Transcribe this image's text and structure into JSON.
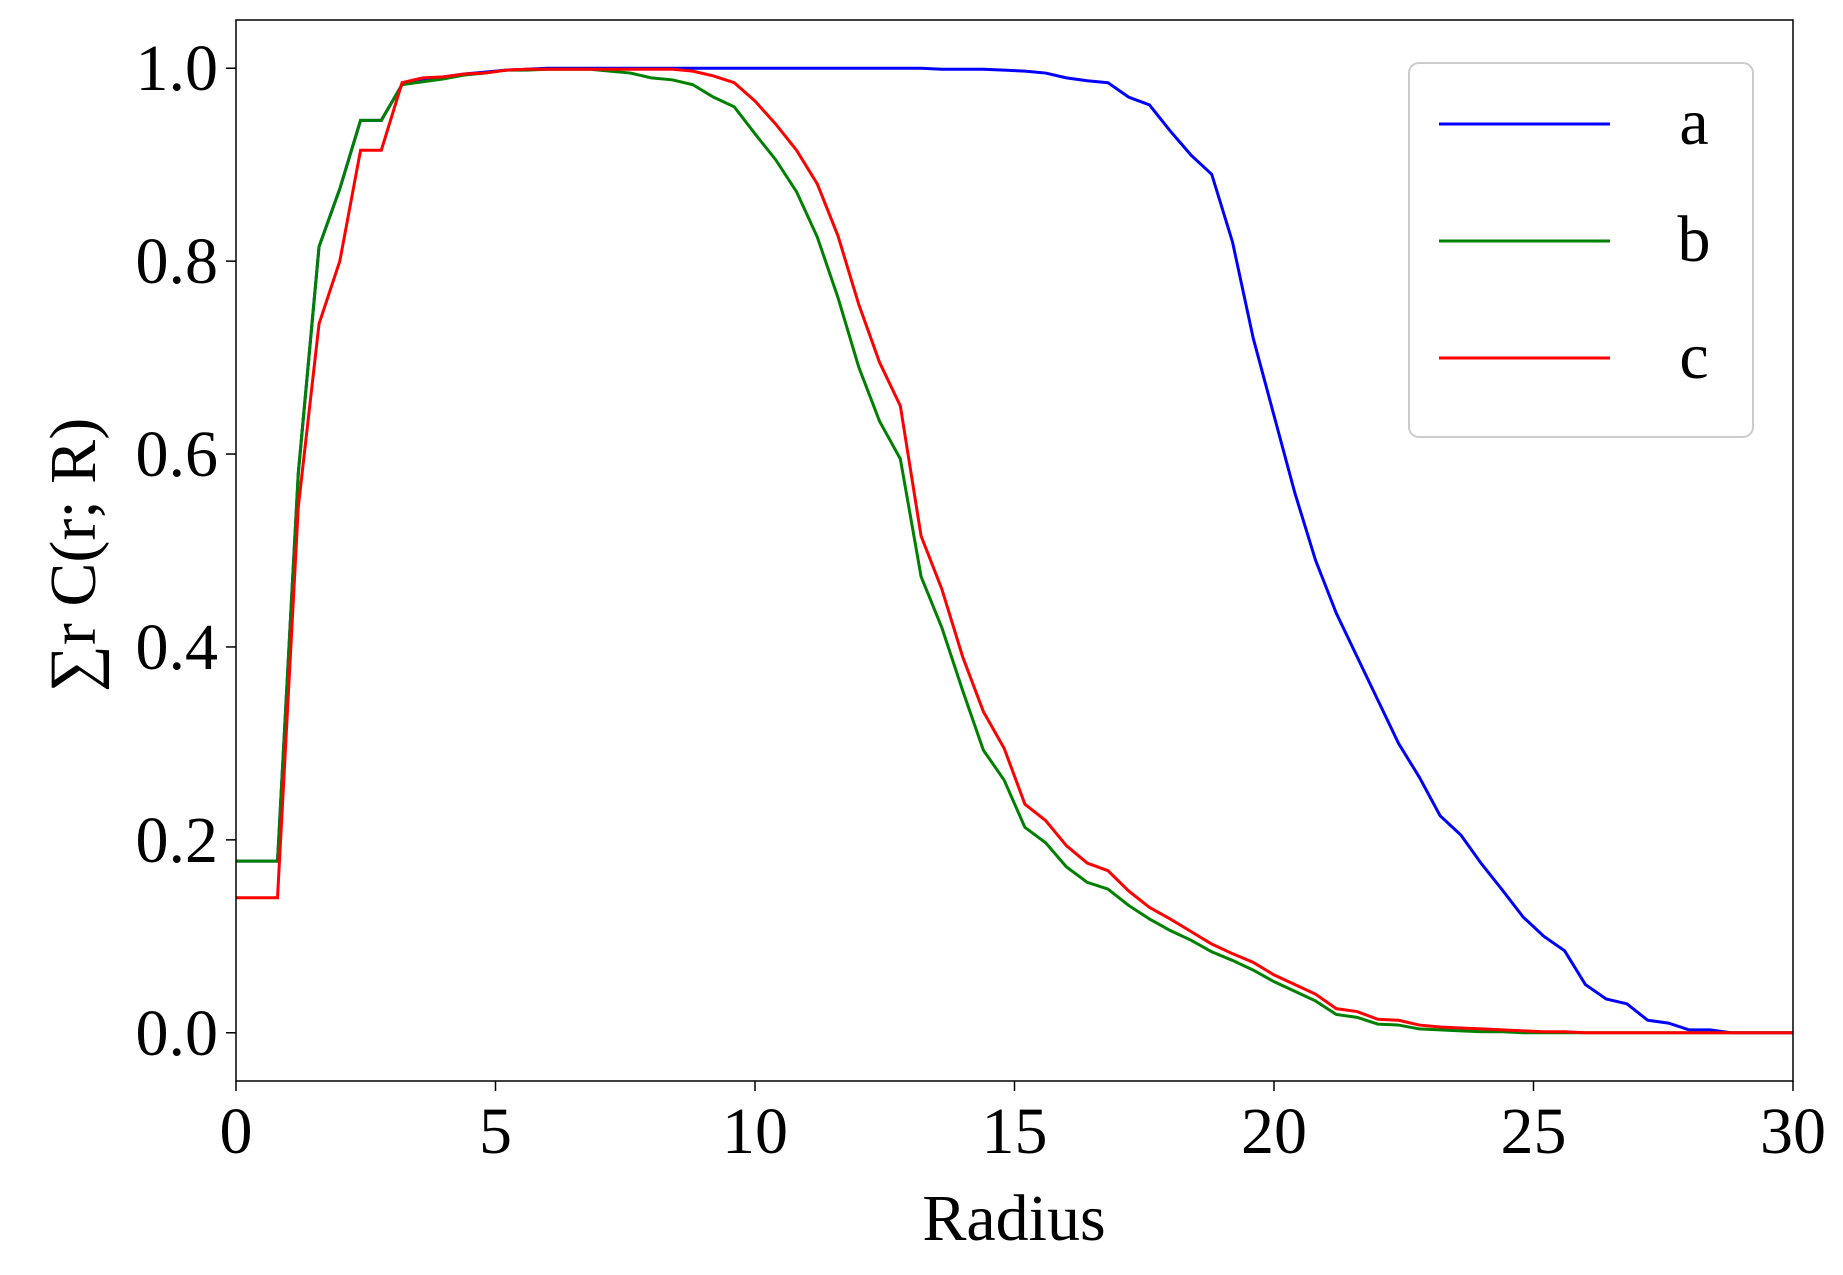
{
  "chart_data": {
    "type": "line",
    "xlabel": "Radius",
    "ylabel": "∑r C(r; R)",
    "x": [
      0,
      0.8,
      1.2,
      1.6,
      2.0,
      2.4,
      2.8,
      3.2,
      3.6,
      4.0,
      4.4,
      4.8,
      5.2,
      5.6,
      6.0,
      6.4,
      6.8,
      7.2,
      7.6,
      8.0,
      8.4,
      8.8,
      9.2,
      9.6,
      10.0,
      10.4,
      10.8,
      11.2,
      11.6,
      12.0,
      12.4,
      12.8,
      13.2,
      13.6,
      14.0,
      14.4,
      14.8,
      15.2,
      15.6,
      16.0,
      16.4,
      16.8,
      17.2,
      17.6,
      18.0,
      18.4,
      18.8,
      19.2,
      19.6,
      20.0,
      20.4,
      20.8,
      21.2,
      21.6,
      22.0,
      22.4,
      22.8,
      23.2,
      23.6,
      24.0,
      24.4,
      24.8,
      25.2,
      25.6,
      26.0,
      26.4,
      26.8,
      27.2,
      27.6,
      28.0,
      28.4,
      28.8,
      30
    ],
    "series": [
      {
        "name": "a",
        "color": "#0000ff",
        "values": [
          0.178,
          0.178,
          0.58,
          0.815,
          0.875,
          0.946,
          0.946,
          0.983,
          0.988,
          0.991,
          0.994,
          0.996,
          0.998,
          0.999,
          1,
          1,
          1,
          1,
          1,
          1,
          1,
          1,
          1,
          1,
          1,
          1,
          1,
          1,
          1,
          1,
          1,
          1,
          1,
          0.999,
          0.999,
          0.999,
          0.998,
          0.997,
          0.995,
          0.99,
          0.987,
          0.985,
          0.97,
          0.962,
          0.935,
          0.91,
          0.89,
          0.82,
          0.72,
          0.64,
          0.56,
          0.49,
          0.435,
          0.39,
          0.345,
          0.3,
          0.265,
          0.225,
          0.205,
          0.175,
          0.148,
          0.12,
          0.1,
          0.085,
          0.05,
          0.035,
          0.03,
          0.013,
          0.01,
          0.003,
          0.003,
          0,
          0
        ]
      },
      {
        "name": "b",
        "color": "#008000",
        "values": [
          0.178,
          0.178,
          0.58,
          0.815,
          0.875,
          0.946,
          0.946,
          0.983,
          0.986,
          0.989,
          0.993,
          0.995,
          0.998,
          0.998,
          0.999,
          0.999,
          0.999,
          0.997,
          0.995,
          0.99,
          0.988,
          0.983,
          0.97,
          0.96,
          0.932,
          0.905,
          0.872,
          0.825,
          0.762,
          0.69,
          0.634,
          0.595,
          0.473,
          0.42,
          0.355,
          0.293,
          0.262,
          0.213,
          0.197,
          0.172,
          0.156,
          0.149,
          0.132,
          0.118,
          0.106,
          0.096,
          0.084,
          0.075,
          0.065,
          0.053,
          0.043,
          0.033,
          0.019,
          0.016,
          0.009,
          0.008,
          0.004,
          0.003,
          0.002,
          0.001,
          0.001,
          0,
          0,
          0,
          0,
          0,
          0,
          0,
          0,
          0,
          0,
          0,
          0
        ]
      },
      {
        "name": "c",
        "color": "#ff0000",
        "values": [
          0.14,
          0.14,
          0.545,
          0.735,
          0.8,
          0.915,
          0.915,
          0.985,
          0.99,
          0.991,
          0.994,
          0.995,
          0.998,
          0.999,
          0.999,
          0.999,
          0.999,
          0.999,
          0.999,
          0.999,
          0.999,
          0.997,
          0.992,
          0.985,
          0.966,
          0.942,
          0.915,
          0.88,
          0.826,
          0.755,
          0.695,
          0.65,
          0.515,
          0.46,
          0.39,
          0.333,
          0.295,
          0.237,
          0.22,
          0.194,
          0.176,
          0.168,
          0.147,
          0.13,
          0.118,
          0.105,
          0.092,
          0.082,
          0.073,
          0.06,
          0.05,
          0.04,
          0.025,
          0.022,
          0.014,
          0.013,
          0.008,
          0.006,
          0.005,
          0.004,
          0.003,
          0.002,
          0.001,
          0.001,
          0,
          0,
          0,
          0,
          0,
          0,
          0,
          0,
          0
        ]
      }
    ],
    "xlim": [
      0,
      30
    ],
    "xticks": [
      0,
      5,
      10,
      15,
      20,
      25,
      30
    ],
    "ylim": [
      -0.05,
      1.05
    ],
    "yticks": [
      {
        "value": 0,
        "label": "0.0"
      },
      0.2,
      0.4,
      0.6,
      0.8,
      {
        "value": 1,
        "label": "1.0"
      }
    ],
    "legend": "upper right"
  }
}
